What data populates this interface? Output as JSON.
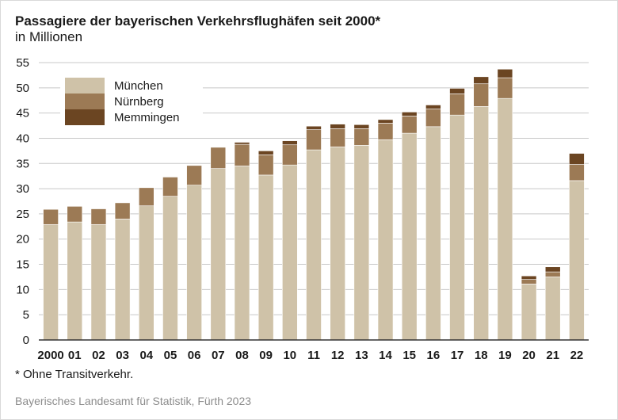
{
  "title": "Passagiere der bayerischen Verkehrsflughäfen seit 2000*",
  "subtitle": "in Millionen",
  "footnote": "* Ohne Transitverkehr.",
  "source": "Bayerisches Landesamt für Statistik, Fürth 2023",
  "colors": {
    "muenchen": "#cfc2a8",
    "nuernberg": "#9c7a55",
    "memmingen": "#6b4522",
    "grid": "#c8c8c8",
    "axis": "#333333"
  },
  "chart_data": {
    "type": "bar",
    "stacked": true,
    "categories": [
      "2000",
      "01",
      "02",
      "03",
      "04",
      "05",
      "06",
      "07",
      "08",
      "09",
      "10",
      "11",
      "12",
      "13",
      "14",
      "15",
      "16",
      "17",
      "18",
      "19",
      "20",
      "21",
      "22"
    ],
    "series": [
      {
        "name": "München",
        "values": [
          22.9,
          23.4,
          22.9,
          24.0,
          26.6,
          28.5,
          30.7,
          34.0,
          34.5,
          32.7,
          34.7,
          37.7,
          38.3,
          38.6,
          39.7,
          41.0,
          42.3,
          44.6,
          46.3,
          47.9,
          11.1,
          12.5,
          31.6
        ]
      },
      {
        "name": "Nürnberg",
        "values": [
          3.0,
          3.1,
          3.1,
          3.2,
          3.6,
          3.8,
          3.9,
          4.2,
          4.3,
          4.0,
          4.0,
          4.0,
          3.6,
          3.3,
          3.3,
          3.4,
          3.5,
          4.2,
          4.5,
          4.1,
          0.9,
          1.0,
          3.2
        ]
      },
      {
        "name": "Memmingen",
        "values": [
          0,
          0,
          0,
          0,
          0,
          0,
          0,
          0,
          0.4,
          0.8,
          0.8,
          0.7,
          0.9,
          0.8,
          0.7,
          0.8,
          0.8,
          1.1,
          1.4,
          1.7,
          0.7,
          1.0,
          2.2
        ]
      }
    ],
    "xlabel": "",
    "ylabel": "",
    "ylim": [
      0,
      55
    ],
    "yticks": [
      0,
      5,
      10,
      15,
      20,
      25,
      30,
      35,
      40,
      45,
      50,
      55
    ],
    "grid": true,
    "legend_position": "top-left"
  }
}
